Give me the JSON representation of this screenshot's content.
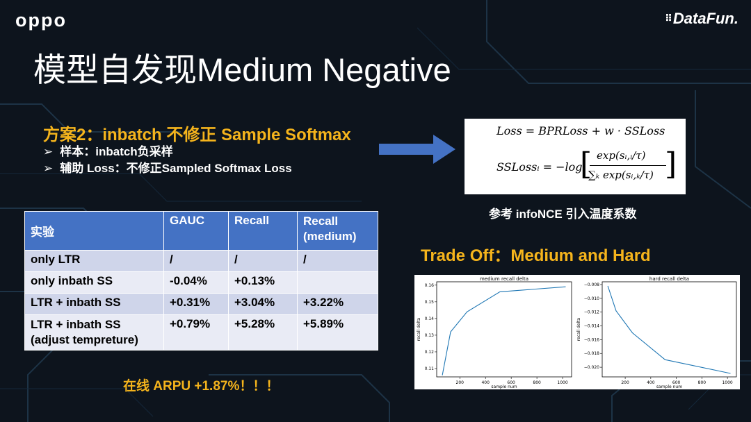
{
  "logos": {
    "left": "oppo",
    "right": "DataFun."
  },
  "title": "模型自发现Medium Negative",
  "subtitle": "方案2：inbatch 不修正 Sample Softmax",
  "bullets": [
    {
      "marker": "➢",
      "text": "样本：inbatch负采样"
    },
    {
      "marker": "➢",
      "text": "辅助 Loss：不修正Sampled Softmax Loss"
    }
  ],
  "formula": {
    "line1": "Loss = BPRLoss + w · SSLoss",
    "line2_lhs": "SSLossᵢ = −log",
    "numerator": "exp(sᵢ,ᵢ/τ)",
    "denominator": "∑ₖ exp(sᵢ,ₖ/τ)"
  },
  "caption_infonce": "参考 infoNCE 引入温度系数",
  "caption_tradeoff": "Trade Off：Medium and Hard",
  "table": {
    "headers": [
      "实验",
      "GAUC",
      "Recall",
      "Recall\n(medium)"
    ],
    "rows": [
      [
        "only LTR",
        "/",
        "/",
        "/"
      ],
      [
        "only inbath SS",
        "-0.04%",
        "+0.13%",
        ""
      ],
      [
        "LTR + inbath SS",
        "+0.31%",
        "+3.04%",
        "+3.22%"
      ],
      [
        "LTR + inbath SS\n(adjust tempreture)",
        "+0.79%",
        "+5.28%",
        "+5.89%"
      ]
    ]
  },
  "arpu": "在线 ARPU +1.87%！！！",
  "chart_data": [
    {
      "type": "line",
      "title": "medium recall delta",
      "xlabel": "sample num",
      "ylabel": "recall delta",
      "x": [
        64,
        128,
        256,
        512,
        1024
      ],
      "y": [
        0.106,
        0.132,
        0.144,
        0.156,
        0.159
      ],
      "xlim": [
        20,
        1070
      ],
      "ylim": [
        0.105,
        0.162
      ],
      "xticks": [
        200,
        400,
        600,
        800,
        1000
      ],
      "yticks": [
        0.11,
        0.12,
        0.13,
        0.14,
        0.15,
        0.16
      ],
      "ytick_labels": [
        "0.11",
        "0.12",
        "0.13",
        "0.14",
        "0.15",
        "0.16"
      ],
      "color": "#1f77b4"
    },
    {
      "type": "line",
      "title": "hard recall delta",
      "xlabel": "sample num",
      "ylabel": "recall delta",
      "x": [
        64,
        128,
        256,
        512,
        1024
      ],
      "y": [
        -0.0082,
        -0.0118,
        -0.015,
        -0.0189,
        -0.0209
      ],
      "xlim": [
        20,
        1070
      ],
      "ylim": [
        -0.0214,
        -0.0076
      ],
      "xticks": [
        200,
        400,
        600,
        800,
        1000
      ],
      "yticks": [
        -0.008,
        -0.01,
        -0.012,
        -0.014,
        -0.016,
        -0.018,
        -0.02
      ],
      "ytick_labels": [
        "−0.008",
        "−0.010",
        "−0.012",
        "−0.014",
        "−0.016",
        "−0.018",
        "−0.020"
      ],
      "color": "#1f77b4"
    }
  ]
}
